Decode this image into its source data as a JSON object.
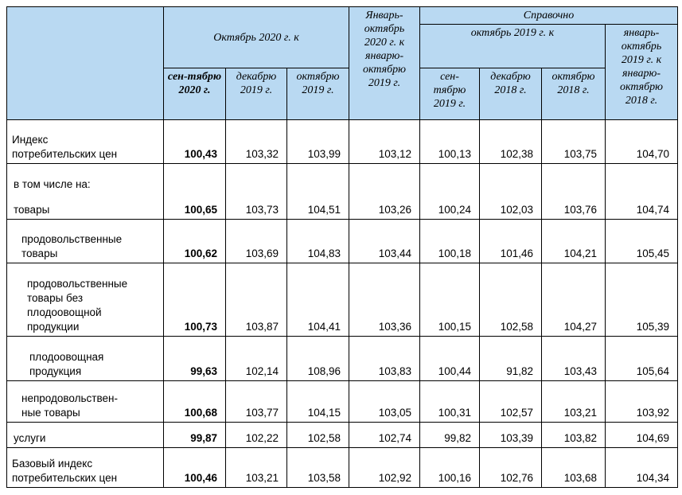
{
  "table": {
    "header": {
      "group_current": "Октябрь 2020 г. к",
      "ytd_current": "Январь-\nоктябрь\n2020 г. к\nянварю-\nоктябрю\n2019 г.",
      "reference": "Справочно",
      "group_previous": "октябрь 2019 г. к",
      "ytd_previous": "январь-\nоктябрь\n2019 г. к\nянварю-\nоктябрю\n2018 г.",
      "sub_current": [
        "сен-тябрю\n2020 г.",
        "декабрю\n2019 г.",
        "октябрю\n2019 г."
      ],
      "sub_previous": [
        "сен-\nтябрю\n2019 г.",
        "декабрю\n2018 г.",
        "октябрю\n2018 г."
      ]
    },
    "rows": [
      {
        "label": "Индекс\nпотребительских цен",
        "values": [
          "100,43",
          "103,32",
          "103,99",
          "103,12",
          "100,13",
          "102,38",
          "103,75",
          "104,70"
        ]
      },
      {
        "note": "в том числе на:",
        "label": "товары",
        "values": [
          "100,65",
          "103,73",
          "104,51",
          "103,26",
          "100,24",
          "102,03",
          "103,76",
          "104,74"
        ]
      },
      {
        "label": "продовольственные\nтовары",
        "values": [
          "100,62",
          "103,69",
          "104,83",
          "103,44",
          "100,18",
          "101,46",
          "104,21",
          "105,45"
        ]
      },
      {
        "label": "продовольственные\nтовары без\nплодоовощной\nпродукции",
        "values": [
          "100,73",
          "103,87",
          "104,41",
          "103,36",
          "100,15",
          "102,58",
          "104,27",
          "105,39"
        ]
      },
      {
        "label": "плодоовощная\nпродукция",
        "values": [
          "99,63",
          "102,14",
          "108,96",
          "103,83",
          "100,44",
          "91,82",
          "103,43",
          "105,64"
        ]
      },
      {
        "label": "непродовольствен-\nные товары",
        "values": [
          "100,68",
          "103,77",
          "104,15",
          "103,05",
          "100,31",
          "102,57",
          "103,21",
          "103,92"
        ]
      },
      {
        "label": "услуги",
        "values": [
          "99,87",
          "102,22",
          "102,58",
          "102,74",
          "99,82",
          "103,39",
          "103,82",
          "104,69"
        ]
      },
      {
        "label": "Базовый индекс\nпотребительских цен",
        "values": [
          "100,46",
          "103,21",
          "103,58",
          "102,92",
          "100,16",
          "102,76",
          "103,68",
          "104,34"
        ]
      }
    ]
  }
}
